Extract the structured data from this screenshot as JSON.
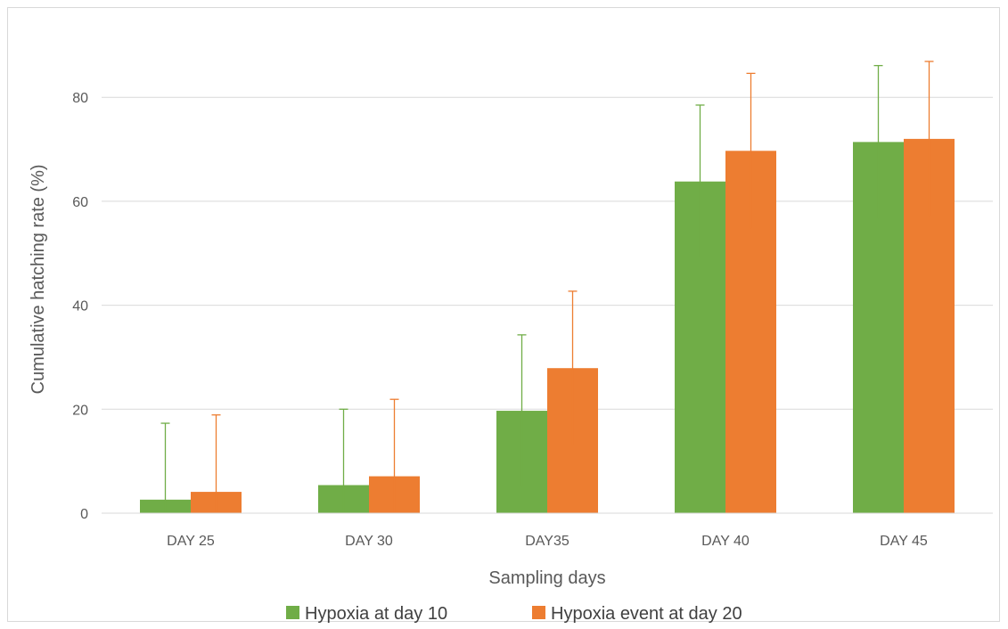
{
  "chart_data": {
    "type": "bar",
    "categories": [
      "DAY 25",
      "DAY 30",
      "DAY35",
      "DAY 40",
      "DAY 45"
    ],
    "series": [
      {
        "name": "Hypoxia at day 10",
        "color": "#70ad47",
        "values": [
          2.6,
          5.4,
          19.7,
          63.8,
          71.4
        ],
        "error": [
          14.7,
          14.6,
          14.6,
          14.7,
          14.7
        ]
      },
      {
        "name": "Hypoxia event at day 20",
        "color": "#ed7d31",
        "values": [
          4.1,
          7.1,
          27.9,
          69.7,
          72.0
        ],
        "error": [
          14.8,
          14.8,
          14.8,
          14.9,
          14.9
        ]
      }
    ],
    "xlabel": "Sampling days",
    "ylabel": "Cumulative hatching rate (%)",
    "ylim": [
      0,
      90
    ],
    "yticks": [
      0,
      20,
      40,
      60,
      80
    ],
    "grid": true,
    "legend_position": "bottom"
  }
}
